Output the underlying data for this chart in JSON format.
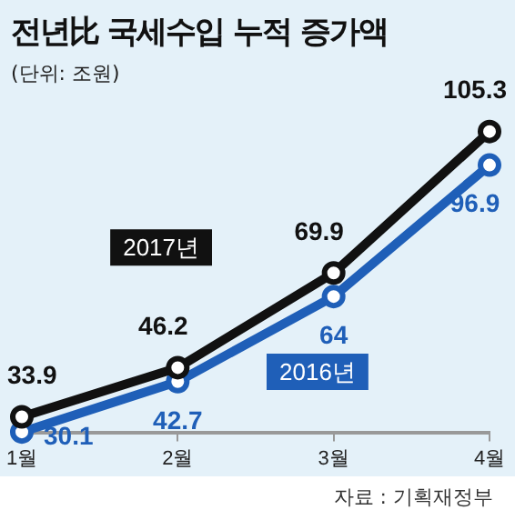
{
  "chart_data": {
    "type": "line",
    "title": "전년比 국세수입 누적 증가액",
    "subtitle": "(단위: 조원)",
    "annotations": [
      "자료 : 기획재정부"
    ],
    "categories": [
      "1월",
      "2월",
      "3월",
      "4월"
    ],
    "series": [
      {
        "name": "2017년",
        "color": "#111111",
        "values": [
          33.9,
          46.2,
          69.9,
          105.3
        ]
      },
      {
        "name": "2016년",
        "color": "#1f5fb8",
        "values": [
          30.1,
          42.7,
          64,
          96.9
        ]
      }
    ],
    "tick_labels": "x",
    "data_labels": true,
    "marker": "circle",
    "grid": false
  }
}
